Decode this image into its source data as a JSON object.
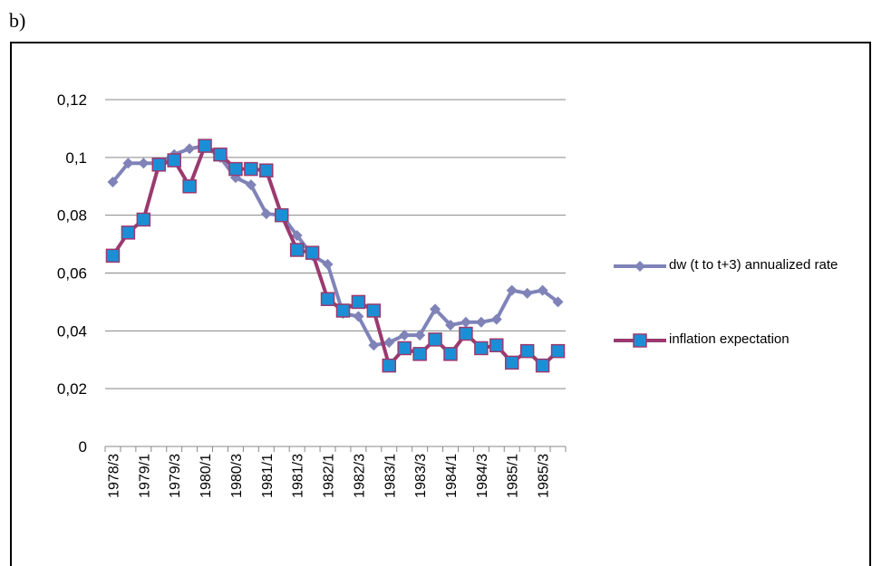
{
  "panel_label": "b)",
  "chart_data": {
    "type": "line",
    "categories": [
      "1978/3",
      null,
      "1979/1",
      null,
      "1979/3",
      null,
      "1980/1",
      null,
      "1980/3",
      null,
      "1981/1",
      null,
      "1981/3",
      null,
      "1982/1",
      null,
      "1982/3",
      null,
      "1983/1",
      null,
      "1983/3",
      null,
      "1984/1",
      null,
      "1984/3",
      null,
      "1985/1",
      null,
      "1985/3",
      null
    ],
    "series": [
      {
        "name": "dw (t to t+3) annualized rate",
        "color": "#7f83b8",
        "marker": "diamond",
        "values": [
          0.0915,
          0.098,
          0.098,
          0.098,
          0.101,
          0.103,
          0.104,
          0.1,
          0.093,
          0.0905,
          0.0805,
          0.08,
          0.073,
          0.066,
          0.063,
          0.046,
          0.045,
          0.035,
          0.036,
          0.0385,
          0.0385,
          0.0475,
          0.042,
          0.043,
          0.043,
          0.044,
          0.054,
          0.053,
          0.054,
          0.05
        ]
      },
      {
        "name": "inflation expectation",
        "color": "#9a3a6f",
        "marker": "square",
        "marker_fill": "#1b8fd6",
        "values": [
          0.066,
          0.074,
          0.0785,
          0.0975,
          0.099,
          0.09,
          0.104,
          0.101,
          0.096,
          0.096,
          0.0955,
          0.08,
          0.068,
          0.067,
          0.051,
          0.047,
          0.05,
          0.047,
          0.028,
          0.034,
          0.032,
          0.037,
          0.032,
          0.039,
          0.034,
          0.035,
          0.029,
          0.033,
          0.028,
          0.033
        ]
      }
    ],
    "ylim": [
      0,
      0.12
    ],
    "yticks": [
      0,
      {
        "value": 0.02,
        "label": "0,02"
      },
      {
        "value": 0.04,
        "label": "0,04"
      },
      {
        "value": 0.06,
        "label": "0,06"
      },
      {
        "value": 0.08,
        "label": "0,08"
      },
      {
        "value": 0.1,
        "label": "0,1"
      },
      {
        "value": 0.12,
        "label": "0,12"
      }
    ],
    "grid": true,
    "legend": "right"
  }
}
